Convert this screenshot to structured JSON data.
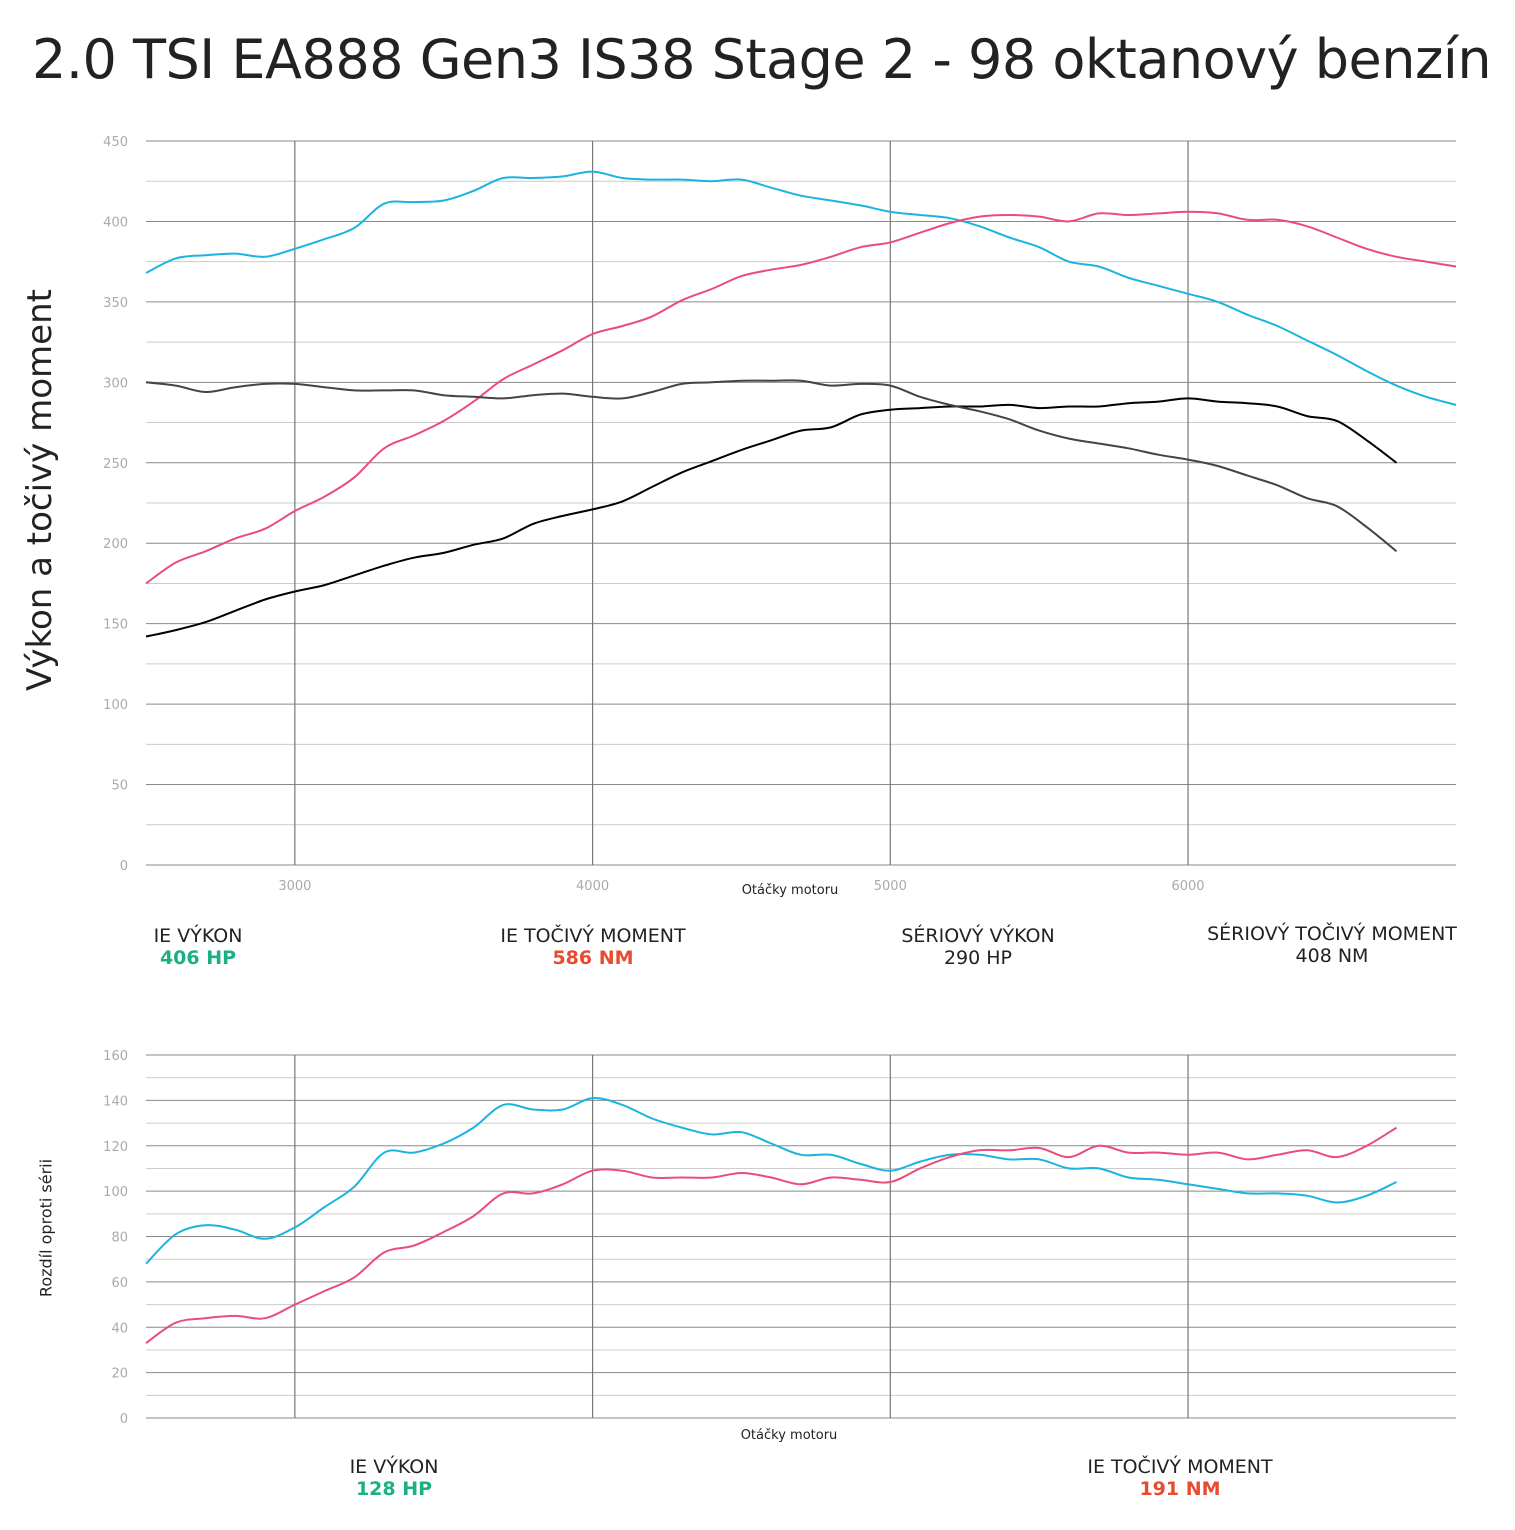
{
  "title": "2.0 TSI EA888 Gen3 IS38 Stage 2 - 98 oktanový benzín",
  "colors": {
    "ie_power": "#1ab4e0",
    "ie_torque": "#ea4d79",
    "stock_power": "#000000",
    "stock_torque": "#444444",
    "value_green": "#1aaf85",
    "value_red": "#e94b2f"
  },
  "main_stats": [
    {
      "label": "IE VÝKON",
      "value": "406 HP",
      "color": "green"
    },
    {
      "label": "IE TOČIVÝ MOMENT",
      "value": "586 NM",
      "color": "red"
    },
    {
      "label": "SÉRIOVÝ VÝKON",
      "value": "290 HP",
      "color": "dark"
    },
    {
      "label": "SÉRIOVÝ TOČIVÝ MOMENT",
      "value": "408 NM",
      "color": "dark"
    }
  ],
  "diff_stats": [
    {
      "label": "IE VÝKON",
      "value": "128 HP",
      "color": "green"
    },
    {
      "label": "IE TOČIVÝ MOMENT",
      "value": "191 NM",
      "color": "red"
    }
  ],
  "chart_data": [
    {
      "type": "line",
      "ylabel": "Výkon a točivý moment",
      "xlabel": "Otáčky motoru",
      "xlim": [
        2500,
        6900
      ],
      "ylim": [
        0,
        450
      ],
      "xticks": [
        3000,
        4000,
        5000,
        6000
      ],
      "yticks": [
        0,
        50,
        100,
        150,
        200,
        250,
        300,
        350,
        400,
        450
      ],
      "grid": true,
      "series": [
        {
          "key": "ie_power",
          "x": [
            2500,
            2600,
            2700,
            2800,
            2900,
            3000,
            3100,
            3200,
            3300,
            3400,
            3500,
            3600,
            3700,
            3800,
            3900,
            4000,
            4100,
            4200,
            4300,
            4400,
            4500,
            4600,
            4700,
            4800,
            4900,
            5000,
            5100,
            5200,
            5300,
            5400,
            5500,
            5600,
            5700,
            5800,
            5900,
            6000,
            6100,
            6200,
            6300,
            6400,
            6500,
            6600,
            6700,
            6800,
            6900
          ],
          "values": [
            368,
            377,
            379,
            380,
            378,
            383,
            389,
            396,
            411,
            412,
            413,
            419,
            427,
            427,
            428,
            431,
            427,
            426,
            426,
            425,
            426,
            421,
            416,
            413,
            410,
            406,
            404,
            402,
            397,
            390,
            384,
            375,
            372,
            365,
            360,
            355,
            350,
            342,
            335,
            326,
            317,
            307,
            298,
            291,
            286
          ]
        },
        {
          "key": "ie_torque",
          "x": [
            2500,
            2600,
            2700,
            2800,
            2900,
            3000,
            3100,
            3200,
            3300,
            3400,
            3500,
            3600,
            3700,
            3800,
            3900,
            4000,
            4100,
            4200,
            4300,
            4400,
            4500,
            4600,
            4700,
            4800,
            4900,
            5000,
            5100,
            5200,
            5300,
            5400,
            5500,
            5600,
            5700,
            5800,
            5900,
            6000,
            6100,
            6200,
            6300,
            6400,
            6500,
            6600,
            6700,
            6800,
            6900
          ],
          "values": [
            175,
            188,
            195,
            203,
            209,
            220,
            229,
            241,
            259,
            267,
            276,
            288,
            302,
            311,
            320,
            330,
            335,
            341,
            351,
            358,
            366,
            370,
            373,
            378,
            384,
            387,
            393,
            399,
            403,
            404,
            403,
            400,
            405,
            404,
            405,
            406,
            405,
            401,
            401,
            397,
            390,
            383,
            378,
            375,
            372
          ]
        },
        {
          "key": "stock_power",
          "x": [
            2500,
            2600,
            2700,
            2800,
            2900,
            3000,
            3100,
            3200,
            3300,
            3400,
            3500,
            3600,
            3700,
            3800,
            3900,
            4000,
            4100,
            4200,
            4300,
            4400,
            4500,
            4600,
            4700,
            4800,
            4900,
            5000,
            5100,
            5200,
            5300,
            5400,
            5500,
            5600,
            5700,
            5800,
            5900,
            6000,
            6100,
            6200,
            6300,
            6400,
            6500,
            6600,
            6700
          ],
          "values": [
            142,
            146,
            151,
            158,
            165,
            170,
            174,
            180,
            186,
            191,
            194,
            199,
            203,
            212,
            217,
            221,
            226,
            235,
            244,
            251,
            258,
            264,
            270,
            272,
            280,
            283,
            284,
            285,
            285,
            286,
            284,
            285,
            285,
            287,
            288,
            290,
            288,
            287,
            285,
            279,
            276,
            264,
            250
          ]
        },
        {
          "key": "stock_torque",
          "x": [
            2500,
            2600,
            2700,
            2800,
            2900,
            3000,
            3100,
            3200,
            3300,
            3400,
            3500,
            3600,
            3700,
            3800,
            3900,
            4000,
            4100,
            4200,
            4300,
            4400,
            4500,
            4600,
            4700,
            4800,
            4900,
            5000,
            5100,
            5200,
            5300,
            5400,
            5500,
            5600,
            5700,
            5800,
            5900,
            6000,
            6100,
            6200,
            6300,
            6400,
            6500,
            6600,
            6700
          ],
          "values": [
            300,
            298,
            294,
            297,
            299,
            299,
            297,
            295,
            295,
            295,
            292,
            291,
            290,
            292,
            293,
            291,
            290,
            294,
            299,
            300,
            301,
            301,
            301,
            298,
            299,
            298,
            291,
            286,
            282,
            277,
            270,
            265,
            262,
            259,
            255,
            252,
            248,
            242,
            236,
            228,
            223,
            210,
            195
          ]
        }
      ]
    },
    {
      "type": "line",
      "ylabel": "Rozdíl oproti sérii",
      "xlabel": "Otáčky motoru",
      "xlim": [
        2500,
        6900
      ],
      "ylim": [
        0,
        160
      ],
      "yticks": [
        0,
        20,
        40,
        60,
        80,
        100,
        120,
        140,
        160
      ],
      "grid": true,
      "series": [
        {
          "key": "ie_power",
          "x": [
            2500,
            2600,
            2700,
            2800,
            2900,
            3000,
            3100,
            3200,
            3300,
            3400,
            3500,
            3600,
            3700,
            3800,
            3900,
            4000,
            4100,
            4200,
            4300,
            4400,
            4500,
            4600,
            4700,
            4800,
            4900,
            5000,
            5100,
            5200,
            5300,
            5400,
            5500,
            5600,
            5700,
            5800,
            5900,
            6000,
            6100,
            6200,
            6300,
            6400,
            6500,
            6600,
            6700
          ],
          "values": [
            68,
            81,
            85,
            83,
            79,
            84,
            93,
            102,
            117,
            117,
            121,
            128,
            138,
            136,
            136,
            141,
            138,
            132,
            128,
            125,
            126,
            121,
            116,
            116,
            112,
            109,
            113,
            116,
            116,
            114,
            114,
            110,
            110,
            106,
            105,
            103,
            101,
            99,
            99,
            98,
            95,
            98,
            104
          ]
        },
        {
          "key": "ie_torque",
          "x": [
            2500,
            2600,
            2700,
            2800,
            2900,
            3000,
            3100,
            3200,
            3300,
            3400,
            3500,
            3600,
            3700,
            3800,
            3900,
            4000,
            4100,
            4200,
            4300,
            4400,
            4500,
            4600,
            4700,
            4800,
            4900,
            5000,
            5100,
            5200,
            5300,
            5400,
            5500,
            5600,
            5700,
            5800,
            5900,
            6000,
            6100,
            6200,
            6300,
            6400,
            6500,
            6600,
            6700
          ],
          "values": [
            33,
            42,
            44,
            45,
            44,
            50,
            56,
            62,
            73,
            76,
            82,
            89,
            99,
            99,
            103,
            109,
            109,
            106,
            106,
            106,
            108,
            106,
            103,
            106,
            105,
            104,
            110,
            115,
            118,
            118,
            119,
            115,
            120,
            117,
            117,
            116,
            117,
            114,
            116,
            118,
            115,
            120,
            128
          ]
        }
      ]
    }
  ]
}
